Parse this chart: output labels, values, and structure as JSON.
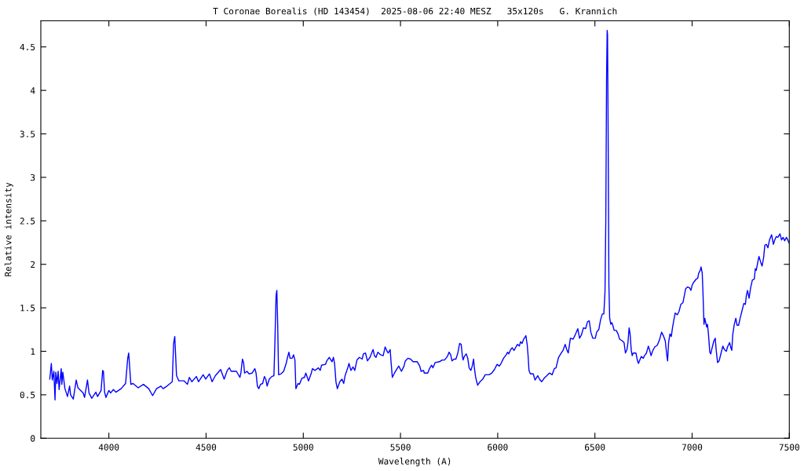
{
  "chart_data": {
    "type": "line",
    "title": "T Coronae Borealis (HD 143454)  2025-08-06 22:40 MESZ   35x120s   G. Krannich",
    "xlabel": "Wavelength (A)",
    "ylabel": "Relative intensity",
    "color": "#0000ff",
    "xlim": [
      3650,
      7500
    ],
    "ylim": [
      0,
      4.8
    ],
    "xticks": [
      4000,
      4500,
      5000,
      5500,
      6000,
      6500,
      7000,
      7500
    ],
    "yticks": [
      0,
      0.5,
      1,
      1.5,
      2,
      2.5,
      3,
      3.5,
      4,
      4.5
    ],
    "x": [
      3696,
      3704,
      3709,
      3717,
      3723,
      3727,
      3733,
      3739,
      3744,
      3755,
      3758,
      3763,
      3774,
      3787,
      3798,
      3803,
      3817,
      3832,
      3841,
      3868,
      3875,
      3890,
      3898,
      3912,
      3933,
      3942,
      3960,
      3968,
      3972,
      3978,
      3985,
      4000,
      4009,
      4023,
      4036,
      4063,
      4086,
      4097,
      4102,
      4106,
      4113,
      4124,
      4151,
      4178,
      4205,
      4225,
      4245,
      4268,
      4279,
      4299,
      4326,
      4333,
      4339,
      4348,
      4360,
      4387,
      4404,
      4414,
      4427,
      4450,
      4461,
      4485,
      4498,
      4517,
      4531,
      4548,
      4575,
      4593,
      4609,
      4620,
      4629,
      4643,
      4656,
      4674,
      4679,
      4687,
      4693,
      4698,
      4710,
      4721,
      4737,
      4751,
      4757,
      4764,
      4771,
      4780,
      4791,
      4800,
      4807,
      4814,
      4825,
      4838,
      4849,
      4854,
      4860,
      4864,
      4868,
      4873,
      4885,
      4899,
      4912,
      4919,
      4926,
      4932,
      4943,
      4950,
      4957,
      4962,
      4973,
      4980,
      4993,
      5006,
      5013,
      5027,
      5040,
      5047,
      5060,
      5078,
      5087,
      5094,
      5114,
      5121,
      5134,
      5148,
      5155,
      5161,
      5168,
      5175,
      5188,
      5199,
      5208,
      5215,
      5229,
      5235,
      5245,
      5256,
      5265,
      5276,
      5289,
      5303,
      5309,
      5320,
      5330,
      5343,
      5350,
      5359,
      5366,
      5374,
      5384,
      5397,
      5411,
      5421,
      5431,
      5437,
      5447,
      5451,
      5458,
      5469,
      5485,
      5491,
      5505,
      5518,
      5525,
      5539,
      5552,
      5565,
      5586,
      5599,
      5606,
      5619,
      5622,
      5640,
      5649,
      5660,
      5667,
      5678,
      5700,
      5714,
      5727,
      5741,
      5750,
      5758,
      5765,
      5775,
      5785,
      5795,
      5804,
      5812,
      5818,
      5822,
      5828,
      5838,
      5846,
      5853,
      5862,
      5869,
      5876,
      5880,
      5886,
      5892,
      5897,
      5909,
      5923,
      5936,
      5956,
      5970,
      5983,
      5997,
      6008,
      6017,
      6030,
      6044,
      6051,
      6057,
      6067,
      6075,
      6084,
      6094,
      6102,
      6111,
      6118,
      6125,
      6134,
      6145,
      6152,
      6156,
      6161,
      6168,
      6183,
      6192,
      6206,
      6215,
      6226,
      6239,
      6253,
      6266,
      6280,
      6291,
      6300,
      6313,
      6327,
      6336,
      6347,
      6355,
      6363,
      6374,
      6388,
      6401,
      6412,
      6421,
      6431,
      6441,
      6452,
      6462,
      6471,
      6479,
      6489,
      6502,
      6509,
      6520,
      6529,
      6538,
      6546,
      6552,
      6556,
      6560,
      6563,
      6565,
      6568,
      6572,
      6576,
      6582,
      6587,
      6592,
      6599,
      6610,
      6619,
      6627,
      6641,
      6650,
      6657,
      6665,
      6670,
      6676,
      6681,
      6687,
      6692,
      6697,
      6711,
      6718,
      6724,
      6738,
      6749,
      6755,
      6765,
      6775,
      6782,
      6789,
      6798,
      6808,
      6821,
      6832,
      6843,
      6852,
      6862,
      6870,
      6874,
      6879,
      6886,
      6893,
      6899,
      6906,
      6913,
      6924,
      6933,
      6942,
      6953,
      6960,
      6967,
      6977,
      6987,
      6994,
      7000,
      7007,
      7021,
      7029,
      7034,
      7042,
      7046,
      7052,
      7056,
      7061,
      7065,
      7069,
      7075,
      7079,
      7084,
      7091,
      7096,
      7104,
      7112,
      7119,
      7124,
      7131,
      7139,
      7149,
      7158,
      7166,
      7176,
      7182,
      7193,
      7198,
      7204,
      7209,
      7217,
      7225,
      7231,
      7239,
      7247,
      7256,
      7266,
      7274,
      7279,
      7285,
      7293,
      7301,
      7310,
      7320,
      7325,
      7330,
      7340,
      7344,
      7352,
      7360,
      7368,
      7374,
      7382,
      7390,
      7398,
      7409,
      7418,
      7425,
      7433,
      7441,
      7452,
      7460,
      7468,
      7476,
      7485,
      7492,
      7500
    ],
    "values": [
      0.68,
      0.86,
      0.67,
      0.77,
      0.44,
      0.76,
      0.63,
      0.77,
      0.56,
      0.8,
      0.62,
      0.76,
      0.57,
      0.48,
      0.6,
      0.5,
      0.45,
      0.67,
      0.58,
      0.52,
      0.47,
      0.67,
      0.52,
      0.46,
      0.53,
      0.48,
      0.55,
      0.78,
      0.77,
      0.53,
      0.47,
      0.55,
      0.52,
      0.56,
      0.53,
      0.57,
      0.63,
      0.92,
      0.98,
      0.85,
      0.62,
      0.63,
      0.58,
      0.62,
      0.57,
      0.49,
      0.57,
      0.6,
      0.57,
      0.6,
      0.65,
      1.09,
      1.17,
      0.72,
      0.66,
      0.66,
      0.62,
      0.7,
      0.65,
      0.71,
      0.65,
      0.73,
      0.68,
      0.74,
      0.65,
      0.72,
      0.79,
      0.68,
      0.78,
      0.81,
      0.77,
      0.77,
      0.77,
      0.7,
      0.75,
      0.91,
      0.87,
      0.75,
      0.77,
      0.74,
      0.75,
      0.8,
      0.75,
      0.6,
      0.57,
      0.62,
      0.63,
      0.71,
      0.68,
      0.6,
      0.68,
      0.71,
      0.72,
      1.1,
      1.64,
      1.7,
      1.34,
      0.73,
      0.74,
      0.77,
      0.86,
      0.93,
      0.99,
      0.92,
      0.92,
      0.96,
      0.9,
      0.57,
      0.63,
      0.62,
      0.69,
      0.7,
      0.75,
      0.66,
      0.74,
      0.8,
      0.78,
      0.81,
      0.78,
      0.84,
      0.85,
      0.89,
      0.93,
      0.88,
      0.93,
      0.86,
      0.65,
      0.57,
      0.65,
      0.68,
      0.63,
      0.72,
      0.81,
      0.86,
      0.78,
      0.82,
      0.78,
      0.9,
      0.93,
      0.91,
      0.97,
      0.98,
      0.89,
      0.93,
      0.97,
      1.02,
      0.95,
      0.93,
      0.99,
      0.96,
      0.95,
      1.05,
      1.0,
      0.98,
      1.02,
      0.89,
      0.7,
      0.75,
      0.81,
      0.83,
      0.77,
      0.83,
      0.89,
      0.92,
      0.91,
      0.88,
      0.88,
      0.83,
      0.77,
      0.78,
      0.75,
      0.75,
      0.8,
      0.84,
      0.81,
      0.87,
      0.88,
      0.9,
      0.9,
      0.94,
      0.99,
      0.96,
      0.89,
      0.91,
      0.91,
      0.98,
      1.09,
      1.08,
      0.95,
      0.9,
      0.94,
      0.97,
      0.92,
      0.81,
      0.78,
      0.83,
      0.91,
      0.81,
      0.71,
      0.65,
      0.61,
      0.65,
      0.68,
      0.73,
      0.73,
      0.75,
      0.79,
      0.85,
      0.83,
      0.86,
      0.92,
      0.96,
      0.99,
      0.97,
      1.02,
      1.04,
      1.01,
      1.05,
      1.08,
      1.06,
      1.11,
      1.09,
      1.14,
      1.18,
      1.07,
      0.96,
      0.78,
      0.74,
      0.74,
      0.67,
      0.72,
      0.68,
      0.65,
      0.69,
      0.72,
      0.75,
      0.73,
      0.8,
      0.81,
      0.93,
      0.98,
      1.01,
      1.08,
      1.02,
      0.98,
      1.15,
      1.14,
      1.2,
      1.26,
      1.15,
      1.19,
      1.27,
      1.26,
      1.34,
      1.35,
      1.22,
      1.15,
      1.15,
      1.22,
      1.25,
      1.36,
      1.43,
      1.43,
      1.69,
      2.49,
      4.13,
      4.69,
      4.64,
      3.54,
      1.76,
      1.38,
      1.31,
      1.33,
      1.3,
      1.24,
      1.24,
      1.2,
      1.14,
      1.12,
      1.1,
      0.98,
      1.02,
      1.1,
      1.27,
      1.2,
      1.01,
      0.95,
      0.98,
      0.98,
      0.9,
      0.86,
      0.94,
      0.92,
      0.95,
      0.98,
      1.06,
      1.01,
      0.95,
      1.01,
      1.05,
      1.07,
      1.13,
      1.22,
      1.18,
      1.12,
      0.95,
      0.89,
      1.1,
      1.2,
      1.17,
      1.27,
      1.36,
      1.44,
      1.42,
      1.46,
      1.54,
      1.56,
      1.64,
      1.72,
      1.74,
      1.73,
      1.7,
      1.76,
      1.79,
      1.83,
      1.84,
      1.9,
      1.93,
      1.97,
      1.9,
      1.67,
      1.31,
      1.38,
      1.34,
      1.28,
      1.31,
      1.2,
      0.99,
      0.97,
      1.05,
      1.12,
      1.15,
      1.01,
      0.87,
      0.89,
      0.98,
      1.06,
      1.02,
      1.0,
      1.05,
      1.1,
      1.05,
      1.01,
      1.19,
      1.31,
      1.38,
      1.3,
      1.3,
      1.38,
      1.46,
      1.55,
      1.54,
      1.64,
      1.7,
      1.61,
      1.73,
      1.82,
      1.83,
      1.95,
      1.93,
      2.05,
      2.09,
      2.03,
      1.98,
      2.08,
      2.22,
      2.23,
      2.19,
      2.28,
      2.34,
      2.23,
      2.28,
      2.32,
      2.31,
      2.35,
      2.28,
      2.31,
      2.27,
      2.31,
      2.28,
      2.24
    ]
  }
}
